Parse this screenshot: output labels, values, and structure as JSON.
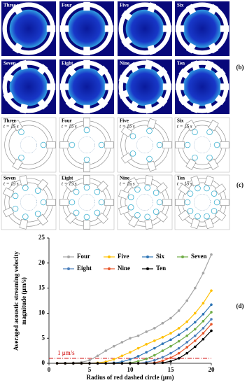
{
  "panel_b": {
    "label": "(b)",
    "images": [
      "Three",
      "Four",
      "Five",
      "Six",
      "Seven",
      "Eight",
      "Nine",
      "Ten"
    ]
  },
  "panel_c": {
    "label": "(c)",
    "images": [
      {
        "name": "Three",
        "time": "t = 15 s"
      },
      {
        "name": "Four",
        "time": "t = 15 s"
      },
      {
        "name": "Five",
        "time": "t = 15 s"
      },
      {
        "name": "Six",
        "time": "t = 15 s"
      },
      {
        "name": "Seven",
        "time": "t = 15 s"
      },
      {
        "name": "Eight",
        "time": "t = 15 s"
      },
      {
        "name": "Nine",
        "time": "t = 15 s"
      },
      {
        "name": "Ten",
        "time": "t = 15 s"
      }
    ]
  },
  "chart_data": {
    "type": "line",
    "panel_label": "(d)",
    "y_label": [
      "Averaged acoustic streaming velocity",
      "magnitude (μm/s)"
    ],
    "x_label": "Radius of red dashed circle (μm)",
    "x": [
      1,
      2,
      3,
      4,
      5,
      6,
      7,
      8,
      9,
      10,
      11,
      12,
      13,
      14,
      15,
      16,
      17,
      18,
      19,
      20
    ],
    "xlim": [
      0,
      20
    ],
    "xticks": [
      0,
      5,
      10,
      15,
      20
    ],
    "ylim": [
      0,
      25
    ],
    "yticks": [
      0,
      5,
      10,
      15,
      20,
      25
    ],
    "series": [
      {
        "name": "Four",
        "color": "#a5a5a5",
        "values": [
          0,
          0,
          0.1,
          0.2,
          0.6,
          1.5,
          2.5,
          3.4,
          4.2,
          5,
          5.5,
          6.3,
          7,
          8,
          9,
          10.5,
          12.5,
          15,
          18,
          21.7
        ]
      },
      {
        "name": "Five",
        "color": "#ffc000",
        "values": [
          0,
          0,
          0,
          0,
          0,
          0.1,
          0.3,
          0.8,
          1.5,
          2.2,
          3,
          3.8,
          4.5,
          5.2,
          6,
          7,
          8.3,
          10,
          12,
          14.5
        ]
      },
      {
        "name": "Six",
        "color": "#2e75b6",
        "values": [
          0,
          0,
          0,
          0,
          0,
          0,
          0,
          0.1,
          0.3,
          0.8,
          1.4,
          2.2,
          3,
          3.9,
          4.7,
          5.7,
          6.8,
          8.2,
          9.8,
          11.7
        ]
      },
      {
        "name": "Seven",
        "color": "#70ad47",
        "values": [
          0,
          0,
          0,
          0,
          0,
          0,
          0,
          0,
          0,
          0.1,
          0.4,
          0.9,
          1.6,
          2.5,
          3.4,
          4.4,
          5.5,
          6.8,
          8.4,
          10.2
        ]
      },
      {
        "name": "Eight",
        "color": "#4a7ebb",
        "values": [
          0,
          0,
          0,
          0,
          0,
          0,
          0,
          0,
          0,
          0,
          0,
          0.2,
          0.6,
          1.2,
          2,
          3,
          4.2,
          5.5,
          7,
          8.8
        ]
      },
      {
        "name": "Nine",
        "color": "#e8562a",
        "values": [
          0,
          0,
          0,
          0,
          0,
          0,
          0,
          0,
          0,
          0,
          0,
          0,
          0.1,
          0.5,
          1.1,
          2,
          3.2,
          4.5,
          6,
          7.8
        ]
      },
      {
        "name": "Ten",
        "color": "#000000",
        "values": [
          0,
          0,
          0,
          0,
          0,
          0,
          0,
          0,
          0,
          0,
          0,
          0,
          0,
          0.1,
          0.4,
          1,
          2,
          3.3,
          4.8,
          6.5
        ]
      }
    ],
    "threshold": {
      "value": 1,
      "label": "1 μm/s",
      "color": "#d00000"
    }
  }
}
